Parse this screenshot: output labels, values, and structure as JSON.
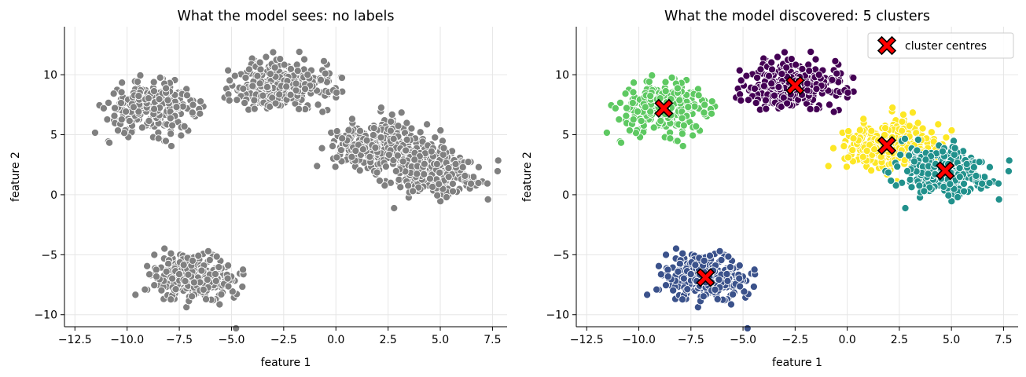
{
  "chart_data": [
    {
      "type": "scatter",
      "title": "What the model sees: no labels",
      "xlabel": "feature 1",
      "ylabel": "feature 2",
      "xlim": [
        -13,
        8.2
      ],
      "ylim": [
        -11,
        14
      ],
      "xticks": [
        -12.5,
        -10.0,
        -7.5,
        -5.0,
        -2.5,
        0.0,
        2.5,
        5.0,
        7.5
      ],
      "xtick_labels": [
        "−12.5",
        "−10.0",
        "−7.5",
        "−5.0",
        "−2.5",
        "0.0",
        "2.5",
        "5.0",
        "7.5"
      ],
      "yticks": [
        -10,
        -5,
        0,
        5,
        10
      ],
      "ytick_labels": [
        "−10",
        "−5",
        "0",
        "5",
        "10"
      ],
      "grid": true,
      "point_color": "#808080",
      "clusters": [
        {
          "center": [
            -8.8,
            7.2
          ],
          "spread": [
            1.05,
            1.0
          ],
          "count": 300
        },
        {
          "center": [
            -2.5,
            9.1
          ],
          "spread": [
            1.15,
            1.05
          ],
          "count": 300
        },
        {
          "center": [
            1.9,
            4.1
          ],
          "spread": [
            1.1,
            1.05
          ],
          "count": 300
        },
        {
          "center": [
            4.7,
            2.0
          ],
          "spread": [
            1.05,
            1.0
          ],
          "count": 300
        },
        {
          "center": [
            -6.8,
            -6.9
          ],
          "spread": [
            1.05,
            0.95
          ],
          "count": 300
        }
      ]
    },
    {
      "type": "scatter",
      "title": "What the model discovered: 5 clusters",
      "xlabel": "feature 1",
      "ylabel": "feature 2",
      "xlim": [
        -13,
        8.2
      ],
      "ylim": [
        -11,
        14
      ],
      "xticks": [
        -12.5,
        -10.0,
        -7.5,
        -5.0,
        -2.5,
        0.0,
        2.5,
        5.0,
        7.5
      ],
      "xtick_labels": [
        "−12.5",
        "−10.0",
        "−7.5",
        "−5.0",
        "−2.5",
        "0.0",
        "2.5",
        "5.0",
        "7.5"
      ],
      "yticks": [
        -10,
        -5,
        0,
        5,
        10
      ],
      "ytick_labels": [
        "−10",
        "−5",
        "0",
        "5",
        "10"
      ],
      "grid": true,
      "legend": {
        "label": "cluster centres",
        "placement": "top-right"
      },
      "clusters": [
        {
          "center": [
            -8.8,
            7.2
          ],
          "spread": [
            1.05,
            1.0
          ],
          "count": 300,
          "color": "#5ec962"
        },
        {
          "center": [
            -2.5,
            9.1
          ],
          "spread": [
            1.15,
            1.05
          ],
          "count": 300,
          "color": "#440154"
        },
        {
          "center": [
            1.9,
            4.1
          ],
          "spread": [
            1.1,
            1.05
          ],
          "count": 300,
          "color": "#fde725"
        },
        {
          "center": [
            4.7,
            2.0
          ],
          "spread": [
            1.05,
            1.0
          ],
          "count": 300,
          "color": "#21918c"
        },
        {
          "center": [
            -6.8,
            -6.9
          ],
          "spread": [
            1.05,
            0.95
          ],
          "count": 300,
          "color": "#3b528b"
        }
      ],
      "centres": [
        [
          -8.8,
          7.2
        ],
        [
          -2.5,
          9.1
        ],
        [
          1.9,
          4.1
        ],
        [
          4.7,
          2.0
        ],
        [
          -6.8,
          -6.9
        ]
      ],
      "centre_color": "#ff0000"
    }
  ]
}
